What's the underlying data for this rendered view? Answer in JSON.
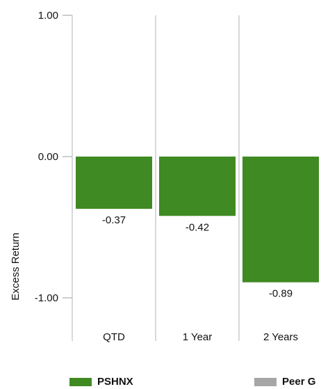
{
  "chart_data": {
    "type": "bar",
    "ylabel": "Excess Return",
    "xlabel": "",
    "title": "",
    "ylim": [
      -1.0,
      1.0
    ],
    "yticks": [
      1.0,
      0.0,
      -1.0
    ],
    "ytick_labels": [
      "1.00",
      "0.00",
      "-1.00"
    ],
    "categories": [
      "QTD",
      "1 Year",
      "2 Years"
    ],
    "grid": "vertical",
    "series": [
      {
        "name": "PSHNX",
        "color": "#3f8a23",
        "values": [
          -0.37,
          -0.42,
          -0.89
        ],
        "value_labels": [
          "-0.37",
          "-0.42",
          "-0.89"
        ]
      }
    ],
    "legend": {
      "position": "bottom",
      "entries": [
        {
          "label": "PSHNX",
          "color": "#3f8a23"
        },
        {
          "label": "Peer G",
          "color": "#a6a6a6"
        }
      ]
    }
  }
}
